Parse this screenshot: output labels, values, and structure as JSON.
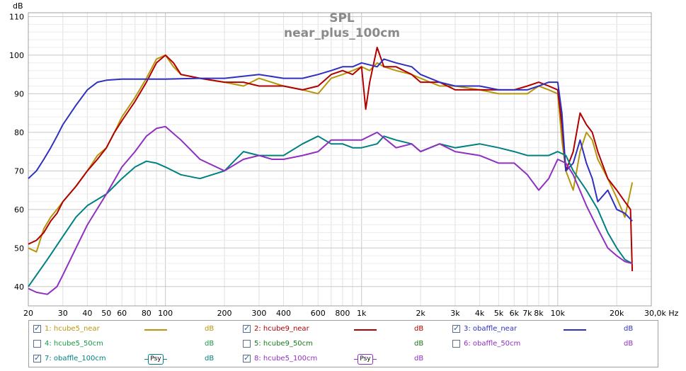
{
  "chart_data": {
    "type": "line",
    "title": "SPL",
    "subtitle": "near_plus_100cm",
    "ylabel": "dB",
    "xlabel": "Hz",
    "x_scale": "log",
    "xlim": [
      20,
      30000
    ],
    "ylim": [
      35,
      111
    ],
    "grid": true,
    "y_ticks": [
      110,
      100,
      90,
      80,
      70,
      60,
      50,
      40
    ],
    "x_ticks": [
      {
        "v": 20,
        "t": "20"
      },
      {
        "v": 30,
        "t": "30"
      },
      {
        "v": 40,
        "t": "40"
      },
      {
        "v": 50,
        "t": "50"
      },
      {
        "v": 60,
        "t": "60"
      },
      {
        "v": 80,
        "t": "80"
      },
      {
        "v": 100,
        "t": "100"
      },
      {
        "v": 200,
        "t": "200"
      },
      {
        "v": 300,
        "t": "300"
      },
      {
        "v": 400,
        "t": "400"
      },
      {
        "v": 600,
        "t": "600"
      },
      {
        "v": 800,
        "t": "800"
      },
      {
        "v": 1000,
        "t": "1k"
      },
      {
        "v": 2000,
        "t": "2k"
      },
      {
        "v": 3000,
        "t": "3k"
      },
      {
        "v": 4000,
        "t": "4k"
      },
      {
        "v": 5000,
        "t": "5k"
      },
      {
        "v": 6000,
        "t": "6k"
      },
      {
        "v": 7000,
        "t": "7k"
      },
      {
        "v": 8000,
        "t": "8k"
      },
      {
        "v": 10000,
        "t": "10k"
      },
      {
        "v": 20000,
        "t": "20k"
      },
      {
        "v": 30000,
        "t": "30,0k Hz"
      }
    ],
    "series": [
      {
        "name": "1: hcube5_near",
        "color": "#b8960c",
        "x": [
          20,
          22,
          24,
          26,
          28,
          30,
          35,
          40,
          45,
          50,
          55,
          60,
          70,
          80,
          90,
          100,
          110,
          120,
          150,
          200,
          250,
          300,
          400,
          500,
          600,
          700,
          800,
          900,
          1000,
          1100,
          1200,
          1300,
          1500,
          1800,
          2000,
          2500,
          3000,
          4000,
          5000,
          6000,
          7000,
          8000,
          9000,
          10000,
          10500,
          11000,
          12000,
          13000,
          14000,
          15000,
          16000,
          18000,
          20000,
          22000,
          24000
        ],
        "y": [
          50,
          49,
          55,
          58,
          60,
          62,
          66,
          70,
          74,
          76,
          80,
          84,
          89,
          94,
          99,
          100,
          97,
          95,
          94,
          93,
          92,
          94,
          92,
          91,
          90,
          94,
          95,
          96,
          97,
          96,
          98,
          97,
          96,
          95,
          94,
          92,
          92,
          91,
          90,
          90,
          90,
          92,
          91,
          90,
          78,
          70,
          65,
          75,
          80,
          78,
          73,
          68,
          63,
          58,
          67
        ]
      },
      {
        "name": "2: hcube9_near",
        "color": "#b00000",
        "x": [
          20,
          22,
          24,
          26,
          28,
          30,
          35,
          40,
          45,
          50,
          55,
          60,
          70,
          80,
          90,
          100,
          110,
          120,
          150,
          200,
          250,
          300,
          400,
          500,
          600,
          700,
          800,
          900,
          1000,
          1050,
          1100,
          1200,
          1300,
          1500,
          1800,
          2000,
          2500,
          3000,
          4000,
          5000,
          6000,
          7000,
          8000,
          9000,
          10000,
          10500,
          11000,
          12000,
          13000,
          14000,
          15000,
          16000,
          18000,
          20000,
          22000,
          23500,
          24000
        ],
        "y": [
          51,
          52,
          54,
          57,
          59,
          62,
          66,
          70,
          73,
          76,
          80,
          83,
          88,
          93,
          98,
          100,
          98,
          95,
          94,
          93,
          93,
          92,
          92,
          91,
          92,
          95,
          96,
          95,
          97,
          86,
          93,
          102,
          97,
          97,
          95,
          93,
          93,
          91,
          91,
          91,
          91,
          92,
          93,
          92,
          91,
          82,
          70,
          75,
          85,
          82,
          80,
          75,
          68,
          65,
          62,
          60,
          44
        ]
      },
      {
        "name": "3: obaffle_near",
        "color": "#3030c0",
        "x": [
          20,
          22,
          24,
          26,
          28,
          30,
          35,
          40,
          45,
          50,
          60,
          70,
          80,
          100,
          150,
          200,
          300,
          400,
          500,
          600,
          700,
          800,
          900,
          1000,
          1200,
          1300,
          1500,
          1800,
          2000,
          2500,
          3000,
          4000,
          5000,
          6000,
          7000,
          8000,
          9000,
          10000,
          10500,
          11000,
          12000,
          13000,
          14000,
          15000,
          16000,
          18000,
          20000,
          22000,
          24000
        ],
        "y": [
          68,
          70,
          73,
          76,
          79,
          82,
          87,
          91,
          93,
          93.5,
          93.8,
          93.8,
          93.8,
          93.8,
          94,
          94,
          95,
          94,
          94,
          95,
          96,
          97,
          97,
          98,
          97,
          99,
          98,
          97,
          95,
          93,
          92,
          92,
          91,
          91,
          91,
          92,
          93,
          93,
          85,
          70,
          72,
          78,
          72,
          68,
          62,
          65,
          60,
          59,
          57
        ]
      },
      {
        "name": "7: obaffle_100cm",
        "color": "#008080",
        "x": [
          20,
          25,
          30,
          35,
          40,
          50,
          60,
          70,
          80,
          90,
          100,
          120,
          150,
          200,
          250,
          300,
          400,
          500,
          600,
          700,
          800,
          900,
          1000,
          1200,
          1300,
          1500,
          1800,
          2000,
          2500,
          3000,
          4000,
          5000,
          6000,
          7000,
          8000,
          9000,
          10000,
          11000,
          12000,
          14000,
          16000,
          18000,
          20000,
          22000,
          24000
        ],
        "y": [
          40,
          47,
          53,
          58,
          61,
          64,
          68,
          71,
          72.5,
          72,
          71,
          69,
          68,
          70,
          75,
          74,
          74,
          77,
          79,
          77,
          77,
          76,
          76,
          77,
          79,
          78,
          77,
          75,
          77,
          76,
          77,
          76,
          75,
          74,
          74,
          74,
          75,
          74,
          70,
          65,
          60,
          54,
          50,
          47,
          46
        ]
      },
      {
        "name": "8: hcube5_100cm",
        "color": "#9030c0",
        "x": [
          20,
          22,
          25,
          28,
          30,
          35,
          40,
          50,
          60,
          70,
          80,
          90,
          100,
          120,
          150,
          200,
          250,
          300,
          350,
          400,
          500,
          600,
          700,
          800,
          900,
          1000,
          1200,
          1500,
          1800,
          2000,
          2500,
          3000,
          4000,
          5000,
          6000,
          7000,
          8000,
          9000,
          10000,
          11000,
          12000,
          14000,
          16000,
          18000,
          20000,
          22000,
          24000
        ],
        "y": [
          39.5,
          38.5,
          38,
          40,
          43,
          50,
          56,
          64,
          71,
          75,
          79,
          81,
          81.5,
          78,
          73,
          70,
          73,
          74,
          73,
          73,
          74,
          75,
          78,
          78,
          78,
          78,
          80,
          76,
          77,
          75,
          77,
          75,
          74,
          72,
          72,
          69,
          65,
          68,
          73,
          72,
          69,
          61,
          55,
          50,
          48,
          46.5,
          46
        ]
      }
    ],
    "legend": [
      {
        "name": "1: hcube5_near",
        "checked": true,
        "color": "#b8960c",
        "unit": "dB",
        "psy": false
      },
      {
        "name": "2: hcube9_near",
        "checked": true,
        "color": "#b00000",
        "unit": "dB",
        "psy": false
      },
      {
        "name": "3: obaffle_near",
        "checked": true,
        "color": "#3030c0",
        "unit": "dB",
        "psy": false
      },
      {
        "name": "4: hcube5_50cm",
        "checked": false,
        "color": "#1a9a4a",
        "unit": "dB",
        "psy": false
      },
      {
        "name": "5: hcube9_50cm",
        "checked": false,
        "color": "#1a7a1a",
        "unit": "dB",
        "psy": false
      },
      {
        "name": "6: obaffle_50cm",
        "checked": false,
        "color": "#9030c0",
        "unit": "dB",
        "psy": false
      },
      {
        "name": "7: obaffle_100cm",
        "checked": true,
        "color": "#008080",
        "unit": "dB",
        "psy": true,
        "badge": "Psy"
      },
      {
        "name": "8: hcube5_100cm",
        "checked": true,
        "color": "#9030c0",
        "unit": "dB",
        "psy": true,
        "badge": "Psy"
      }
    ]
  }
}
